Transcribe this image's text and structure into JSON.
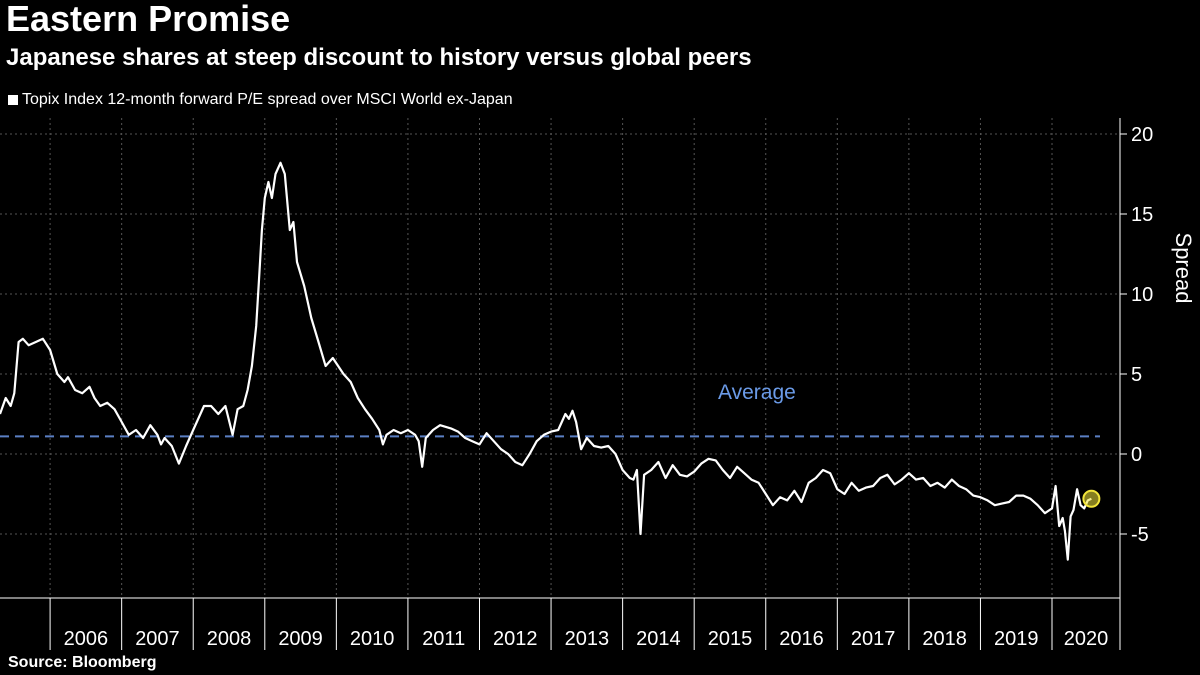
{
  "header": {
    "title": "Eastern Promise",
    "subtitle": "Japanese shares at steep discount to history versus global peers"
  },
  "legend": {
    "label": "Topix Index 12-month forward P/E spread over MSCI World ex-Japan"
  },
  "source": "Source: Bloomberg",
  "colors": {
    "background": "#000000",
    "series": "#ffffff",
    "average_line": "#5b7fc4",
    "average_label": "#6b9be8",
    "marker": "#f2e53a",
    "grid": "#555555"
  },
  "chart_data": {
    "type": "line",
    "title": "Eastern Promise",
    "subtitle": "Japanese shares at steep discount to history versus global peers",
    "ylabel": "Spread",
    "xlabel": "",
    "ylim": [
      -9,
      21
    ],
    "yticks": [
      -5,
      0,
      5,
      10,
      15,
      20
    ],
    "xlim": [
      2005.3,
      2020.95
    ],
    "years": [
      "2006",
      "2007",
      "2008",
      "2009",
      "2010",
      "2011",
      "2012",
      "2013",
      "2014",
      "2015",
      "2016",
      "2017",
      "2018",
      "2019",
      "2020"
    ],
    "grid": true,
    "legend_position": "top-left",
    "average": {
      "label": "Average",
      "value": 1.1
    },
    "series": [
      {
        "name": "Topix Index 12-month forward P/E spread over MSCI World ex-Japan",
        "x": [
          2005.3,
          2005.38,
          2005.45,
          2005.5,
          2005.56,
          2005.62,
          2005.7,
          2005.8,
          2005.9,
          2006.0,
          2006.1,
          2006.2,
          2006.25,
          2006.35,
          2006.45,
          2006.55,
          2006.62,
          2006.7,
          2006.8,
          2006.9,
          2007.0,
          2007.1,
          2007.2,
          2007.3,
          2007.4,
          2007.5,
          2007.55,
          2007.6,
          2007.7,
          2007.8,
          2007.9,
          2008.0,
          2008.1,
          2008.15,
          2008.25,
          2008.35,
          2008.45,
          2008.55,
          2008.62,
          2008.7,
          2008.76,
          2008.82,
          2008.88,
          2008.92,
          2008.96,
          2009.0,
          2009.05,
          2009.1,
          2009.15,
          2009.22,
          2009.28,
          2009.35,
          2009.4,
          2009.45,
          2009.55,
          2009.65,
          2009.75,
          2009.85,
          2009.95,
          2010.1,
          2010.2,
          2010.3,
          2010.4,
          2010.5,
          2010.6,
          2010.65,
          2010.7,
          2010.8,
          2010.9,
          2011.0,
          2011.1,
          2011.15,
          2011.2,
          2011.25,
          2011.35,
          2011.45,
          2011.6,
          2011.7,
          2011.8,
          2011.9,
          2012.0,
          2012.1,
          2012.2,
          2012.3,
          2012.4,
          2012.5,
          2012.6,
          2012.7,
          2012.8,
          2012.9,
          2013.0,
          2013.1,
          2013.2,
          2013.25,
          2013.3,
          2013.35,
          2013.42,
          2013.5,
          2013.6,
          2013.7,
          2013.8,
          2013.9,
          2014.0,
          2014.1,
          2014.15,
          2014.2,
          2014.25,
          2014.3,
          2014.4,
          2014.5,
          2014.6,
          2014.7,
          2014.8,
          2014.9,
          2015.0,
          2015.1,
          2015.2,
          2015.3,
          2015.4,
          2015.5,
          2015.6,
          2015.7,
          2015.8,
          2015.9,
          2016.0,
          2016.1,
          2016.2,
          2016.3,
          2016.4,
          2016.5,
          2016.6,
          2016.7,
          2016.8,
          2016.9,
          2017.0,
          2017.1,
          2017.2,
          2017.3,
          2017.4,
          2017.5,
          2017.6,
          2017.7,
          2017.8,
          2017.9,
          2018.0,
          2018.1,
          2018.2,
          2018.3,
          2018.4,
          2018.5,
          2018.6,
          2018.7,
          2018.8,
          2018.9,
          2019.0,
          2019.1,
          2019.2,
          2019.3,
          2019.4,
          2019.5,
          2019.6,
          2019.7,
          2019.8,
          2019.9,
          2020.0,
          2020.05,
          2020.1,
          2020.15,
          2020.18,
          2020.22,
          2020.26,
          2020.3,
          2020.35,
          2020.4,
          2020.45,
          2020.5,
          2020.55
        ],
        "y": [
          2.5,
          3.5,
          3.0,
          3.8,
          7.0,
          7.2,
          6.8,
          7.0,
          7.2,
          6.5,
          5.0,
          4.5,
          4.8,
          4.0,
          3.8,
          4.2,
          3.5,
          3.0,
          3.2,
          2.8,
          2.0,
          1.2,
          1.5,
          1.0,
          1.8,
          1.2,
          0.6,
          1.0,
          0.5,
          -0.6,
          0.5,
          1.5,
          2.5,
          3.0,
          3.0,
          2.5,
          3.0,
          1.2,
          2.8,
          3.0,
          4.0,
          5.5,
          8.0,
          11.0,
          14.0,
          16.0,
          17.0,
          16.0,
          17.5,
          18.2,
          17.5,
          14.0,
          14.5,
          12.0,
          10.5,
          8.5,
          7.0,
          5.5,
          6.0,
          5.0,
          4.5,
          3.5,
          2.8,
          2.2,
          1.5,
          0.6,
          1.2,
          1.5,
          1.3,
          1.5,
          1.2,
          0.8,
          -0.8,
          1.0,
          1.5,
          1.8,
          1.6,
          1.4,
          1.0,
          0.8,
          0.6,
          1.3,
          0.8,
          0.3,
          0.0,
          -0.5,
          -0.7,
          0.0,
          0.8,
          1.2,
          1.4,
          1.5,
          2.5,
          2.2,
          2.7,
          2.0,
          0.3,
          1.0,
          0.5,
          0.4,
          0.5,
          0.0,
          -1.0,
          -1.5,
          -1.6,
          -1.0,
          -5.0,
          -1.3,
          -1.0,
          -0.5,
          -1.5,
          -0.7,
          -1.3,
          -1.4,
          -1.1,
          -0.6,
          -0.3,
          -0.4,
          -1.0,
          -1.5,
          -0.8,
          -1.2,
          -1.6,
          -1.8,
          -2.5,
          -3.2,
          -2.7,
          -2.9,
          -2.3,
          -3.0,
          -1.8,
          -1.5,
          -1.0,
          -1.2,
          -2.2,
          -2.5,
          -1.8,
          -2.3,
          -2.1,
          -2.0,
          -1.5,
          -1.3,
          -1.9,
          -1.6,
          -1.2,
          -1.6,
          -1.5,
          -2.0,
          -1.8,
          -2.1,
          -1.6,
          -2.0,
          -2.2,
          -2.6,
          -2.7,
          -2.9,
          -3.2,
          -3.1,
          -3.0,
          -2.6,
          -2.6,
          -2.8,
          -3.2,
          -3.7,
          -3.4,
          -2.0,
          -4.5,
          -4.0,
          -4.8,
          -6.6,
          -3.9,
          -3.5,
          -2.2,
          -3.2,
          -3.4,
          -2.9,
          -2.8
        ]
      }
    ],
    "endpoint": {
      "x": 2020.55,
      "y": -2.8
    }
  }
}
